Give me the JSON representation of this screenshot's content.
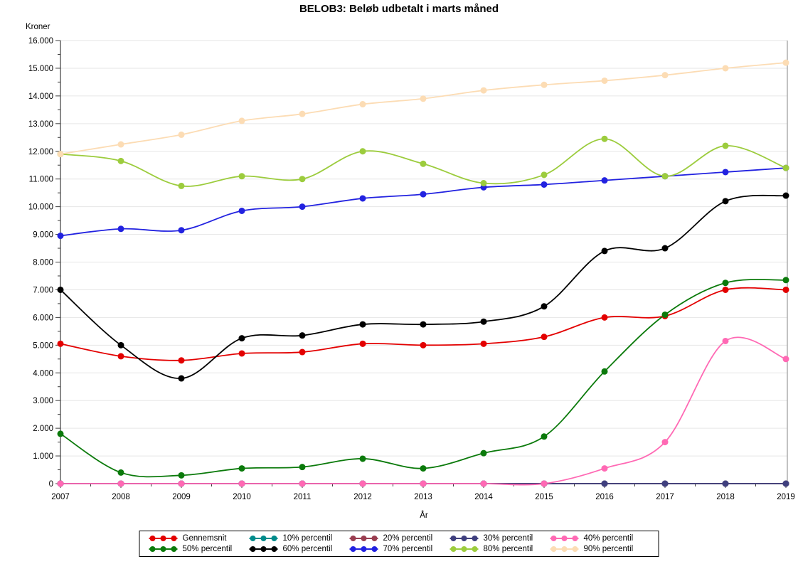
{
  "chart_data": {
    "type": "line",
    "title": "BELOB3: Beløb udbetalt i marts måned",
    "xlabel": "År",
    "ylabel": "Kroner",
    "x": [
      2007,
      2008,
      2009,
      2010,
      2011,
      2012,
      2013,
      2014,
      2015,
      2016,
      2017,
      2018,
      2019
    ],
    "ylim": [
      0,
      16000
    ],
    "y_tick_step": 1000,
    "y_minor_tick_step": 500,
    "y_tick_labels": [
      "0",
      "1.000",
      "2.000",
      "3.000",
      "4.000",
      "5.000",
      "6.000",
      "7.000",
      "8.000",
      "9.000",
      "10.000",
      "11.000",
      "12.000",
      "13.000",
      "14.000",
      "15.000",
      "16.000"
    ],
    "grid": true,
    "legend_position": "bottom",
    "series": [
      {
        "name": "Gennemsnit",
        "color": "#e30000",
        "values": [
          5050,
          4600,
          4450,
          4700,
          4750,
          5050,
          5000,
          5050,
          5300,
          6000,
          6050,
          7000,
          7000
        ]
      },
      {
        "name": "10% percentil",
        "color": "#008b8b",
        "values": [
          0,
          0,
          0,
          0,
          0,
          0,
          0,
          0,
          0,
          0,
          0,
          0,
          0
        ]
      },
      {
        "name": "20% percentil",
        "color": "#993d50",
        "values": [
          0,
          0,
          0,
          0,
          0,
          0,
          0,
          0,
          0,
          0,
          0,
          0,
          0
        ]
      },
      {
        "name": "30% percentil",
        "color": "#3f3f7e",
        "values": [
          0,
          0,
          0,
          0,
          0,
          0,
          0,
          0,
          0,
          0,
          0,
          0,
          0
        ]
      },
      {
        "name": "40% percentil",
        "color": "#ff69b4",
        "values": [
          0,
          0,
          0,
          0,
          0,
          0,
          0,
          0,
          0,
          550,
          1500,
          5150,
          4500
        ]
      },
      {
        "name": "50% percentil",
        "color": "#0b7a0b",
        "values": [
          1800,
          400,
          300,
          550,
          600,
          900,
          550,
          1100,
          1700,
          4050,
          6100,
          7250,
          7350
        ]
      },
      {
        "name": "60% percentil",
        "color": "#000000",
        "values": [
          7000,
          5000,
          3800,
          5250,
          5350,
          5750,
          5750,
          5850,
          6400,
          8400,
          8500,
          10200,
          10400
        ]
      },
      {
        "name": "70% percentil",
        "color": "#2222e0",
        "values": [
          8950,
          9200,
          9150,
          9850,
          10000,
          10300,
          10450,
          10700,
          10800,
          10950,
          11100,
          11250,
          11400
        ]
      },
      {
        "name": "80% percentil",
        "color": "#9ccc3d",
        "values": [
          11900,
          11650,
          10750,
          11100,
          11000,
          12000,
          11550,
          10850,
          11150,
          12450,
          11100,
          12200,
          11400
        ]
      },
      {
        "name": "90% percentil",
        "color": "#fcdcb4",
        "values": [
          11900,
          12250,
          12600,
          13100,
          13350,
          13700,
          13900,
          14200,
          14400,
          14550,
          14750,
          15000,
          15200
        ]
      }
    ],
    "colors": {
      "grid": "#e6e6e6",
      "axis": "#3c3c3c",
      "frame": "#9a9a9a",
      "background": "#ffffff"
    }
  }
}
